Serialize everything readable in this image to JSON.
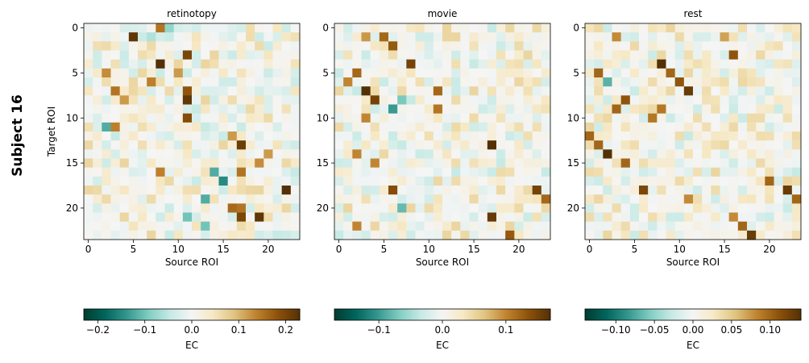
{
  "figure": {
    "row_label": "Subject 16"
  },
  "chart_data": [
    {
      "type": "heatmap",
      "title": "retinotopy",
      "xlabel": "Source ROI",
      "ylabel": "Target ROI",
      "size": 24,
      "x_ticks": [
        0,
        5,
        10,
        15,
        20
      ],
      "y_ticks": [
        0,
        5,
        10,
        15,
        20
      ],
      "colormap": "BrBG_r",
      "vmin": -0.23,
      "vmax": 0.23,
      "colorbar": {
        "label": "EC",
        "ticks": [
          -0.2,
          -0.1,
          0.0,
          0.1,
          0.2
        ],
        "tick_labels": [
          "−0.2",
          "−0.1",
          "0.0",
          "0.1",
          "0.2"
        ]
      },
      "strong_cells": [
        {
          "row": 0,
          "col": 8,
          "value": 0.15
        },
        {
          "row": 0,
          "col": 9,
          "value": -0.08
        },
        {
          "row": 1,
          "col": 5,
          "value": 0.22
        },
        {
          "row": 1,
          "col": 7,
          "value": -0.06
        },
        {
          "row": 3,
          "col": 11,
          "value": 0.2
        },
        {
          "row": 4,
          "col": 8,
          "value": 0.23
        },
        {
          "row": 5,
          "col": 2,
          "value": 0.13
        },
        {
          "row": 5,
          "col": 10,
          "value": 0.12
        },
        {
          "row": 6,
          "col": 7,
          "value": 0.14
        },
        {
          "row": 7,
          "col": 3,
          "value": 0.15
        },
        {
          "row": 7,
          "col": 11,
          "value": 0.18
        },
        {
          "row": 8,
          "col": 11,
          "value": 0.22
        },
        {
          "row": 8,
          "col": 4,
          "value": 0.12
        },
        {
          "row": 10,
          "col": 11,
          "value": 0.19
        },
        {
          "row": 11,
          "col": 2,
          "value": -0.12
        },
        {
          "row": 11,
          "col": 3,
          "value": 0.14
        },
        {
          "row": 12,
          "col": 16,
          "value": 0.12
        },
        {
          "row": 13,
          "col": 17,
          "value": 0.21
        },
        {
          "row": 14,
          "col": 20,
          "value": 0.12
        },
        {
          "row": 15,
          "col": 19,
          "value": 0.13
        },
        {
          "row": 16,
          "col": 8,
          "value": 0.14
        },
        {
          "row": 16,
          "col": 14,
          "value": -0.12
        },
        {
          "row": 16,
          "col": 17,
          "value": 0.15
        },
        {
          "row": 17,
          "col": 15,
          "value": -0.15
        },
        {
          "row": 18,
          "col": 22,
          "value": 0.23
        },
        {
          "row": 19,
          "col": 13,
          "value": -0.12
        },
        {
          "row": 20,
          "col": 16,
          "value": 0.16
        },
        {
          "row": 20,
          "col": 17,
          "value": 0.15
        },
        {
          "row": 21,
          "col": 17,
          "value": 0.2
        },
        {
          "row": 21,
          "col": 19,
          "value": 0.22
        },
        {
          "row": 21,
          "col": 11,
          "value": -0.1
        },
        {
          "row": 22,
          "col": 13,
          "value": -0.1
        }
      ]
    },
    {
      "type": "heatmap",
      "title": "movie",
      "xlabel": "Source ROI",
      "size": 24,
      "x_ticks": [
        0,
        5,
        10,
        15,
        20
      ],
      "y_ticks": [
        0,
        5,
        10,
        15,
        20
      ],
      "colormap": "BrBG_r",
      "vmin": -0.17,
      "vmax": 0.17,
      "colorbar": {
        "label": "EC",
        "ticks": [
          -0.1,
          0.0,
          0.1
        ],
        "tick_labels": [
          "−0.1",
          "0.0",
          "0.1"
        ]
      },
      "strong_cells": [
        {
          "row": 1,
          "col": 3,
          "value": 0.09
        },
        {
          "row": 1,
          "col": 5,
          "value": 0.12
        },
        {
          "row": 2,
          "col": 6,
          "value": 0.13
        },
        {
          "row": 4,
          "col": 8,
          "value": 0.15
        },
        {
          "row": 5,
          "col": 2,
          "value": 0.12
        },
        {
          "row": 6,
          "col": 1,
          "value": 0.1
        },
        {
          "row": 7,
          "col": 3,
          "value": 0.17
        },
        {
          "row": 7,
          "col": 11,
          "value": 0.12
        },
        {
          "row": 8,
          "col": 4,
          "value": 0.15
        },
        {
          "row": 8,
          "col": 7,
          "value": -0.07
        },
        {
          "row": 9,
          "col": 6,
          "value": -0.1
        },
        {
          "row": 9,
          "col": 11,
          "value": 0.11
        },
        {
          "row": 10,
          "col": 3,
          "value": 0.1
        },
        {
          "row": 13,
          "col": 17,
          "value": 0.17
        },
        {
          "row": 14,
          "col": 2,
          "value": 0.1
        },
        {
          "row": 15,
          "col": 4,
          "value": 0.1
        },
        {
          "row": 18,
          "col": 6,
          "value": 0.14
        },
        {
          "row": 18,
          "col": 22,
          "value": 0.15
        },
        {
          "row": 19,
          "col": 23,
          "value": 0.12
        },
        {
          "row": 20,
          "col": 7,
          "value": -0.08
        },
        {
          "row": 21,
          "col": 17,
          "value": 0.16
        },
        {
          "row": 22,
          "col": 2,
          "value": 0.1
        },
        {
          "row": 23,
          "col": 19,
          "value": 0.13
        }
      ]
    },
    {
      "type": "heatmap",
      "title": "rest",
      "xlabel": "Source ROI",
      "size": 24,
      "x_ticks": [
        0,
        5,
        10,
        15,
        20
      ],
      "y_ticks": [
        0,
        5,
        10,
        15,
        20
      ],
      "colormap": "BrBG_r",
      "vmin": -0.14,
      "vmax": 0.14,
      "colorbar": {
        "label": "EC",
        "ticks": [
          -0.1,
          -0.05,
          0.0,
          0.05,
          0.1
        ],
        "tick_labels": [
          "−0.10",
          "−0.05",
          "0.00",
          "0.05",
          "0.10"
        ]
      },
      "strong_cells": [
        {
          "row": 1,
          "col": 3,
          "value": 0.08
        },
        {
          "row": 1,
          "col": 15,
          "value": 0.07
        },
        {
          "row": 3,
          "col": 16,
          "value": 0.11
        },
        {
          "row": 4,
          "col": 8,
          "value": 0.14
        },
        {
          "row": 5,
          "col": 1,
          "value": 0.1
        },
        {
          "row": 5,
          "col": 9,
          "value": 0.1
        },
        {
          "row": 6,
          "col": 2,
          "value": -0.07
        },
        {
          "row": 6,
          "col": 10,
          "value": 0.11
        },
        {
          "row": 7,
          "col": 11,
          "value": 0.13
        },
        {
          "row": 8,
          "col": 4,
          "value": 0.11
        },
        {
          "row": 9,
          "col": 3,
          "value": 0.1
        },
        {
          "row": 9,
          "col": 8,
          "value": 0.09
        },
        {
          "row": 10,
          "col": 7,
          "value": 0.09
        },
        {
          "row": 12,
          "col": 0,
          "value": 0.1
        },
        {
          "row": 13,
          "col": 1,
          "value": 0.1
        },
        {
          "row": 14,
          "col": 2,
          "value": 0.14
        },
        {
          "row": 15,
          "col": 4,
          "value": 0.1
        },
        {
          "row": 17,
          "col": 20,
          "value": 0.1
        },
        {
          "row": 18,
          "col": 6,
          "value": 0.12
        },
        {
          "row": 18,
          "col": 22,
          "value": 0.13
        },
        {
          "row": 19,
          "col": 23,
          "value": 0.1
        },
        {
          "row": 19,
          "col": 11,
          "value": 0.08
        },
        {
          "row": 21,
          "col": 16,
          "value": 0.08
        },
        {
          "row": 22,
          "col": 17,
          "value": 0.1
        },
        {
          "row": 23,
          "col": 18,
          "value": 0.13
        }
      ]
    }
  ]
}
